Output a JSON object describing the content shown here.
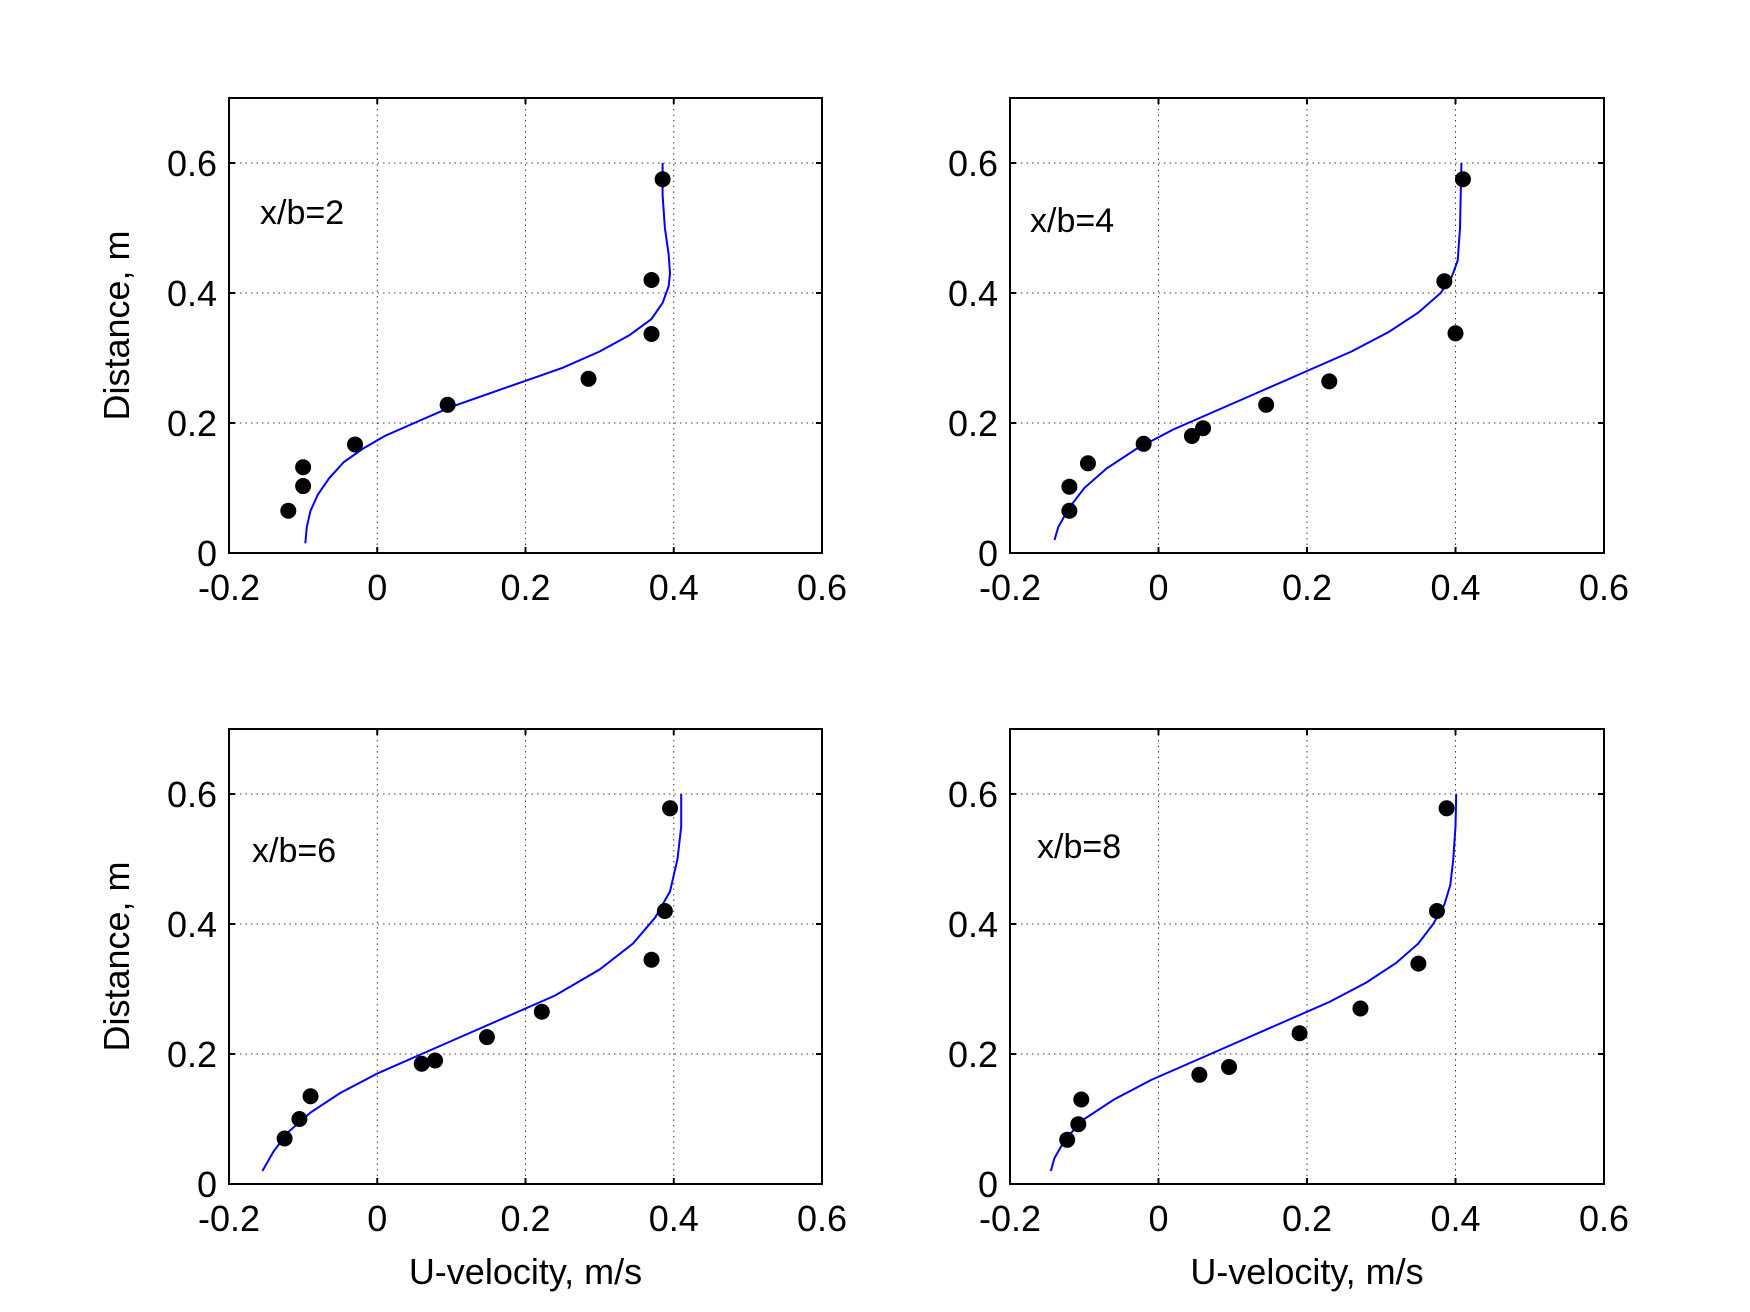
{
  "colors": {
    "model_line": "#0000ff",
    "marker": "#000000",
    "axes": "#000000",
    "background": "#ffffff"
  },
  "chart_data": [
    {
      "type": "scatter",
      "annotation": "x/b=2",
      "xlabel": "",
      "ylabel": "Distance, m",
      "xlim": [
        -0.2,
        0.6
      ],
      "ylim": [
        0,
        0.7
      ],
      "xticks": [
        -0.2,
        0,
        0.2,
        0.4,
        0.6
      ],
      "xtick_labels": [
        "-0.2",
        "0",
        "0.2",
        "0.4",
        "0.6"
      ],
      "yticks": [
        0,
        0.2,
        0.4,
        0.6
      ],
      "ytick_labels": [
        "0",
        "0.2",
        "0.4",
        "0.6"
      ],
      "grid": true,
      "series": [
        {
          "kind": "scatter",
          "color": "#000000",
          "x": [
            -0.12,
            -0.1,
            -0.1,
            -0.03,
            0.095,
            0.285,
            0.37,
            0.37,
            0.385
          ],
          "y": [
            0.065,
            0.103,
            0.132,
            0.167,
            0.228,
            0.268,
            0.337,
            0.42,
            0.575
          ]
        },
        {
          "kind": "line",
          "color": "#0000ff",
          "x": [
            -0.097,
            -0.095,
            -0.09,
            -0.08,
            -0.065,
            -0.045,
            -0.02,
            0.01,
            0.05,
            0.1,
            0.15,
            0.2,
            0.25,
            0.3,
            0.34,
            0.37,
            0.385,
            0.393,
            0.395,
            0.393,
            0.388,
            0.385,
            0.385
          ],
          "y": [
            0.015,
            0.04,
            0.065,
            0.09,
            0.115,
            0.14,
            0.16,
            0.18,
            0.2,
            0.225,
            0.245,
            0.265,
            0.285,
            0.31,
            0.335,
            0.36,
            0.385,
            0.41,
            0.43,
            0.46,
            0.5,
            0.55,
            0.6
          ]
        }
      ]
    },
    {
      "type": "scatter",
      "annotation": "x/b=4",
      "xlabel": "",
      "ylabel": "",
      "xlim": [
        -0.2,
        0.6
      ],
      "ylim": [
        0,
        0.7
      ],
      "xticks": [
        -0.2,
        0,
        0.2,
        0.4,
        0.6
      ],
      "xtick_labels": [
        "-0.2",
        "0",
        "0.2",
        "0.4",
        "0.6"
      ],
      "yticks": [
        0,
        0.2,
        0.4,
        0.6
      ],
      "ytick_labels": [
        "0",
        "0.2",
        "0.4",
        "0.6"
      ],
      "grid": true,
      "series": [
        {
          "kind": "scatter",
          "color": "#000000",
          "x": [
            -0.12,
            -0.12,
            -0.095,
            -0.02,
            0.045,
            0.06,
            0.145,
            0.23,
            0.385,
            0.4,
            0.41
          ],
          "y": [
            0.065,
            0.102,
            0.138,
            0.168,
            0.18,
            0.192,
            0.228,
            0.264,
            0.418,
            0.338,
            0.575
          ]
        },
        {
          "kind": "line",
          "color": "#0000ff",
          "x": [
            -0.14,
            -0.135,
            -0.12,
            -0.1,
            -0.07,
            -0.03,
            0.02,
            0.08,
            0.14,
            0.2,
            0.26,
            0.31,
            0.35,
            0.38,
            0.395,
            0.403,
            0.406,
            0.407,
            0.408
          ],
          "y": [
            0.02,
            0.04,
            0.07,
            0.1,
            0.13,
            0.16,
            0.19,
            0.22,
            0.25,
            0.28,
            0.31,
            0.34,
            0.37,
            0.4,
            0.425,
            0.45,
            0.5,
            0.55,
            0.6
          ]
        }
      ]
    },
    {
      "type": "scatter",
      "annotation": "x/b=6",
      "xlabel": "U-velocity, m/s",
      "ylabel": "Distance, m",
      "xlim": [
        -0.2,
        0.6
      ],
      "ylim": [
        0,
        0.7
      ],
      "xticks": [
        -0.2,
        0,
        0.2,
        0.4,
        0.6
      ],
      "xtick_labels": [
        "-0.2",
        "0",
        "0.2",
        "0.4",
        "0.6"
      ],
      "yticks": [
        0,
        0.2,
        0.4,
        0.6
      ],
      "ytick_labels": [
        "0",
        "0.2",
        "0.4",
        "0.6"
      ],
      "grid": true,
      "series": [
        {
          "kind": "scatter",
          "color": "#000000",
          "x": [
            -0.125,
            -0.105,
            -0.09,
            0.06,
            0.078,
            0.148,
            0.222,
            0.37,
            0.388,
            0.395
          ],
          "y": [
            0.07,
            0.1,
            0.135,
            0.185,
            0.19,
            0.226,
            0.265,
            0.345,
            0.42,
            0.578
          ]
        },
        {
          "kind": "line",
          "color": "#0000ff",
          "x": [
            -0.155,
            -0.14,
            -0.12,
            -0.09,
            -0.05,
            0.0,
            0.06,
            0.12,
            0.18,
            0.24,
            0.3,
            0.345,
            0.375,
            0.395,
            0.405,
            0.41,
            0.41
          ],
          "y": [
            0.02,
            0.05,
            0.08,
            0.11,
            0.14,
            0.17,
            0.2,
            0.23,
            0.26,
            0.29,
            0.33,
            0.37,
            0.41,
            0.45,
            0.5,
            0.55,
            0.6
          ]
        }
      ]
    },
    {
      "type": "scatter",
      "annotation": "x/b=8",
      "xlabel": "U-velocity, m/s",
      "ylabel": "",
      "xlim": [
        -0.2,
        0.6
      ],
      "ylim": [
        0,
        0.7
      ],
      "xticks": [
        -0.2,
        0,
        0.2,
        0.4,
        0.6
      ],
      "xtick_labels": [
        "-0.2",
        "0",
        "0.2",
        "0.4",
        "0.6"
      ],
      "yticks": [
        0,
        0.2,
        0.4,
        0.6
      ],
      "ytick_labels": [
        "0",
        "0.2",
        "0.4",
        "0.6"
      ],
      "grid": true,
      "series": [
        {
          "kind": "scatter",
          "color": "#000000",
          "x": [
            -0.123,
            -0.108,
            -0.104,
            0.055,
            0.095,
            0.19,
            0.272,
            0.35,
            0.375,
            0.388
          ],
          "y": [
            0.068,
            0.092,
            0.13,
            0.168,
            0.18,
            0.232,
            0.27,
            0.339,
            0.42,
            0.578
          ]
        },
        {
          "kind": "line",
          "color": "#0000ff",
          "x": [
            -0.145,
            -0.14,
            -0.125,
            -0.1,
            -0.06,
            -0.01,
            0.05,
            0.11,
            0.17,
            0.23,
            0.28,
            0.32,
            0.35,
            0.37,
            0.385,
            0.393,
            0.397,
            0.4,
            0.401
          ],
          "y": [
            0.02,
            0.04,
            0.07,
            0.1,
            0.13,
            0.16,
            0.19,
            0.22,
            0.25,
            0.28,
            0.31,
            0.34,
            0.37,
            0.4,
            0.43,
            0.46,
            0.5,
            0.55,
            0.6
          ]
        }
      ]
    }
  ]
}
